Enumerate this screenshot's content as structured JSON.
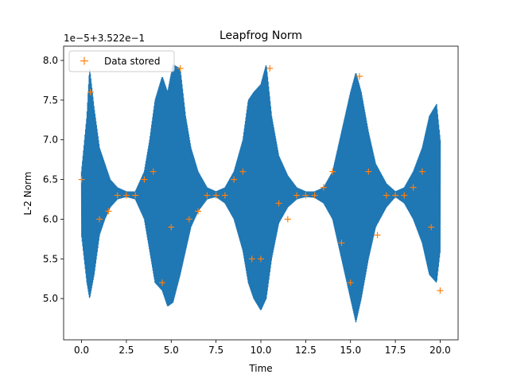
{
  "chart_data": {
    "type": "line",
    "title": "Leapfrog Norm",
    "xlabel": "Time",
    "ylabel": "L-2 Norm",
    "offset_text": "1e−5+3.522e−1",
    "xlim": [
      -1.0,
      21.0
    ],
    "ylim": [
      4.48,
      8.18
    ],
    "xticks": [
      0.0,
      2.5,
      5.0,
      7.5,
      10.0,
      12.5,
      15.0,
      17.5,
      20.0
    ],
    "xtick_labels": [
      "0.0",
      "2.5",
      "5.0",
      "7.5",
      "10.0",
      "12.5",
      "15.0",
      "17.5",
      "20.0"
    ],
    "yticks": [
      5.0,
      5.5,
      6.0,
      6.5,
      7.0,
      7.5,
      8.0
    ],
    "ytick_labels": [
      "5.0",
      "5.5",
      "6.0",
      "6.5",
      "7.0",
      "7.5",
      "8.0"
    ],
    "grid": false,
    "legend_position": "top-left",
    "series": [
      {
        "kind": "oscillation-envelope",
        "color": "#1f77b4",
        "center": 6.3,
        "x": [
          0.0,
          0.3,
          0.45,
          0.7,
          1.0,
          1.3,
          1.6,
          2.0,
          2.5,
          3.0,
          3.5,
          3.8,
          4.1,
          4.5,
          4.8,
          5.1,
          5.5,
          5.8,
          6.1,
          6.5,
          7.0,
          7.5,
          8.0,
          8.5,
          9.0,
          9.3,
          9.6,
          10.0,
          10.3,
          10.6,
          11.0,
          11.5,
          12.0,
          12.5,
          13.0,
          13.5,
          14.0,
          14.4,
          14.7,
          15.0,
          15.3,
          15.6,
          16.0,
          16.4,
          17.0,
          17.5,
          18.0,
          18.5,
          19.0,
          19.4,
          19.8,
          20.0
        ],
        "upper": [
          6.6,
          7.3,
          7.9,
          7.4,
          6.9,
          6.7,
          6.5,
          6.4,
          6.35,
          6.35,
          6.6,
          7.0,
          7.5,
          7.8,
          7.6,
          7.95,
          7.9,
          7.3,
          6.9,
          6.6,
          6.4,
          6.35,
          6.4,
          6.6,
          7.0,
          7.5,
          7.6,
          7.7,
          7.95,
          7.3,
          6.8,
          6.55,
          6.4,
          6.35,
          6.35,
          6.4,
          6.6,
          7.0,
          7.3,
          7.6,
          7.85,
          7.6,
          7.1,
          6.7,
          6.45,
          6.35,
          6.4,
          6.6,
          6.9,
          7.3,
          7.45,
          7.0
        ],
        "lower": [
          5.8,
          5.2,
          5.0,
          5.3,
          5.8,
          6.0,
          6.15,
          6.25,
          6.28,
          6.25,
          6.0,
          5.6,
          5.2,
          5.1,
          4.9,
          4.95,
          5.3,
          5.6,
          5.9,
          6.1,
          6.25,
          6.28,
          6.2,
          6.0,
          5.6,
          5.2,
          5.0,
          4.85,
          5.0,
          5.5,
          5.95,
          6.15,
          6.25,
          6.28,
          6.27,
          6.2,
          6.0,
          5.6,
          5.3,
          5.0,
          4.7,
          5.0,
          5.5,
          5.9,
          6.15,
          6.28,
          6.2,
          6.0,
          5.7,
          5.3,
          5.2,
          5.6
        ]
      },
      {
        "name": "Data stored",
        "kind": "markers",
        "marker": "+",
        "color": "#ff7f0e",
        "x": [
          0.0,
          0.5,
          1.0,
          1.5,
          2.0,
          2.5,
          3.0,
          3.5,
          4.0,
          4.5,
          5.0,
          5.5,
          6.0,
          6.5,
          7.0,
          7.5,
          8.0,
          8.5,
          9.0,
          9.5,
          10.0,
          10.5,
          11.0,
          11.5,
          12.0,
          12.5,
          13.0,
          13.5,
          14.0,
          14.5,
          15.0,
          15.5,
          16.0,
          16.5,
          17.0,
          17.5,
          18.0,
          18.5,
          19.0,
          19.5,
          20.0
        ],
        "y": [
          6.5,
          7.6,
          6.0,
          6.1,
          6.3,
          6.3,
          6.3,
          6.5,
          6.6,
          5.2,
          5.9,
          7.9,
          6.0,
          6.1,
          6.3,
          6.3,
          6.3,
          6.5,
          6.6,
          5.5,
          5.5,
          7.9,
          6.2,
          6.0,
          6.3,
          6.3,
          6.3,
          6.4,
          6.6,
          5.7,
          5.2,
          7.8,
          6.6,
          5.8,
          6.3,
          6.3,
          6.3,
          6.4,
          6.6,
          5.9,
          5.1
        ]
      }
    ]
  }
}
